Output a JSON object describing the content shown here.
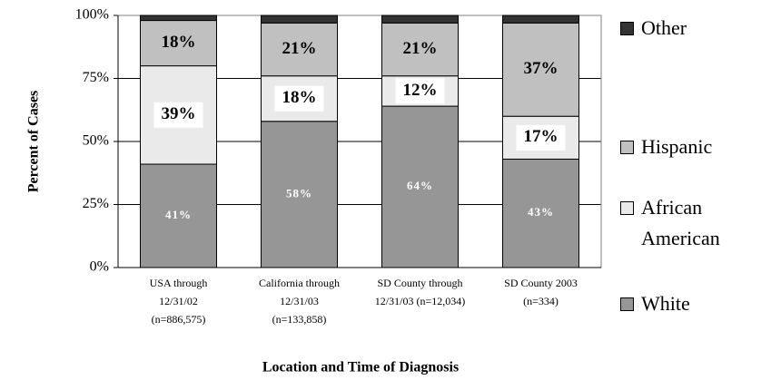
{
  "chart_data": {
    "type": "bar",
    "stacked": true,
    "y_label": "Percent of Cases",
    "x_label": "Location and Time of Diagnosis",
    "categories": [
      [
        "USA through",
        "12/31/02",
        "(n=886,575)"
      ],
      [
        "California through",
        "12/31/03",
        "(n=133,858)"
      ],
      [
        "SD County through",
        "12/31/03 (n=12,034)"
      ],
      [
        "SD County 2003",
        "(n=334)"
      ]
    ],
    "series": [
      {
        "name": "White",
        "color": "#969696",
        "values": [
          41,
          58,
          64,
          43
        ],
        "value_labels": [
          "41%",
          "58%",
          "64%",
          "43%"
        ]
      },
      {
        "name": "African American",
        "color": "#eaeaea",
        "values": [
          39,
          18,
          12,
          17
        ],
        "value_labels": [
          "39%",
          "18%",
          "12%",
          "17%"
        ]
      },
      {
        "name": "Hispanic",
        "color": "#c0c0c0",
        "values": [
          18,
          21,
          21,
          37
        ],
        "value_labels": [
          "18%",
          "21%",
          "21%",
          "37%"
        ]
      },
      {
        "name": "Other",
        "color": "#333333",
        "values": [
          2,
          3,
          3,
          3
        ]
      }
    ],
    "ylim": [
      0,
      100
    ],
    "yticks": [
      {
        "value": 0,
        "label": "0%"
      },
      {
        "value": 25,
        "label": "25%"
      },
      {
        "value": 50,
        "label": "50%"
      },
      {
        "value": 75,
        "label": "75%"
      },
      {
        "value": 100,
        "label": "100%"
      }
    ],
    "grid": true
  }
}
